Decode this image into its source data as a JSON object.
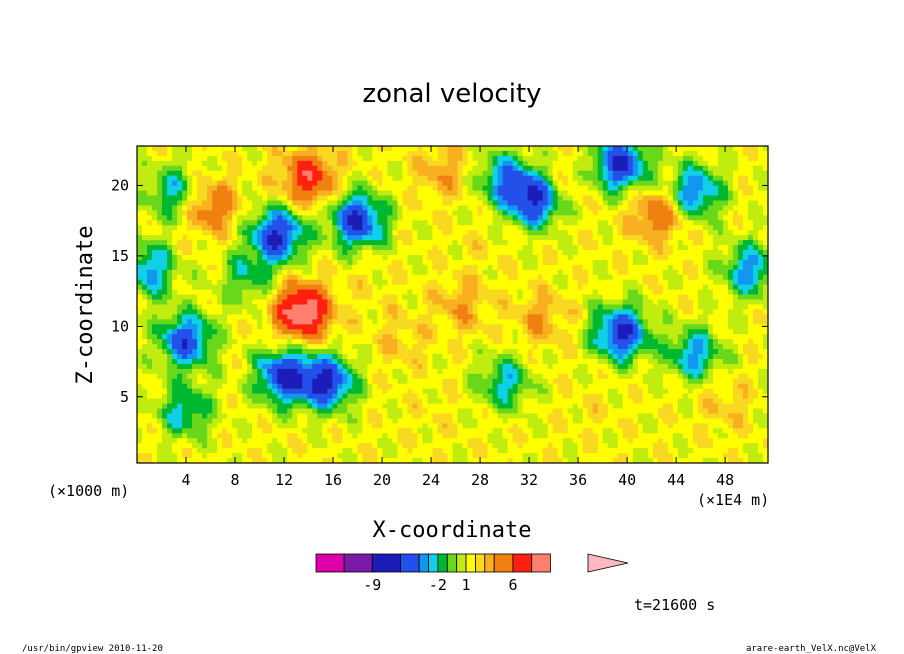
{
  "chart_data": {
    "type": "heatmap",
    "title": "zonal velocity",
    "xlabel": "X-coordinate",
    "ylabel": "Z-coordinate",
    "x_unit_left": "(×1000 m)",
    "x_unit_right": "(×1E4 m)",
    "xlim": [
      0,
      51.5
    ],
    "ylim": [
      0.3,
      22.8
    ],
    "x_ticks": [
      4,
      8,
      12,
      16,
      20,
      24,
      28,
      32,
      36,
      40,
      44,
      48
    ],
    "y_ticks": [
      5,
      10,
      15,
      20
    ],
    "colorbar": {
      "labels": [
        "-9",
        "-2",
        "1",
        "6"
      ],
      "label_values": [
        -9,
        -2,
        1,
        6
      ],
      "levels": [
        -15,
        -12,
        -9,
        -6,
        -4,
        -3,
        -2,
        -1,
        0,
        1,
        2,
        3,
        4,
        6,
        8,
        10,
        14
      ],
      "colors": [
        "#dd00aa",
        "#7a1aa8",
        "#1c1cb8",
        "#2250e8",
        "#1296f0",
        "#10d0e8",
        "#00b830",
        "#6ad81a",
        "#c0ec10",
        "#ffff00",
        "#f8d820",
        "#f8b020",
        "#f08010",
        "#ff2010",
        "#ff8070",
        "#ffb8c0"
      ]
    },
    "features": [
      {
        "x": 13.5,
        "z": 11.0,
        "value": 11
      },
      {
        "x": 14.0,
        "z": 20.5,
        "value": 8
      },
      {
        "x": 6.0,
        "z": 18.5,
        "value": 6
      },
      {
        "x": 42.5,
        "z": 18.0,
        "value": 6
      },
      {
        "x": 11.5,
        "z": 16.5,
        "value": -7
      },
      {
        "x": 12.0,
        "z": 6.5,
        "value": -7
      },
      {
        "x": 15.5,
        "z": 6.0,
        "value": -7
      },
      {
        "x": 18.0,
        "z": 17.5,
        "value": -7
      },
      {
        "x": 39.5,
        "z": 21.5,
        "value": -7
      },
      {
        "x": 32.5,
        "z": 19.0,
        "value": -7
      },
      {
        "x": 39.5,
        "z": 9.5,
        "value": -7
      },
      {
        "x": 4.0,
        "z": 9.0,
        "value": -6
      },
      {
        "x": 45.5,
        "z": 19.5,
        "value": -5
      },
      {
        "x": 50.0,
        "z": 14.0,
        "value": -4
      },
      {
        "x": 3.0,
        "z": 19.5,
        "value": -3
      },
      {
        "x": 30.0,
        "z": 20.5,
        "value": -4
      },
      {
        "x": 4.0,
        "z": 4.0,
        "value": -3
      },
      {
        "x": 45.5,
        "z": 8.0,
        "value": -4
      },
      {
        "x": 25.0,
        "z": 21.0,
        "value": 4
      },
      {
        "x": 26.5,
        "z": 11.5,
        "value": 4
      },
      {
        "x": 33.0,
        "z": 10.5,
        "value": 4
      },
      {
        "x": 21.5,
        "z": 9.0,
        "value": 3
      },
      {
        "x": 34.5,
        "z": 20.0,
        "value": 3
      },
      {
        "x": 19.0,
        "z": 13.0,
        "value": 2
      },
      {
        "x": 24.0,
        "z": 3.5,
        "value": 2
      },
      {
        "x": 30.0,
        "z": 6.0,
        "value": -3
      },
      {
        "x": 37.0,
        "z": 4.0,
        "value": 2
      },
      {
        "x": 48.0,
        "z": 4.5,
        "value": 3
      },
      {
        "x": 1.0,
        "z": 14.0,
        "value": -4
      },
      {
        "x": 9.0,
        "z": 13.5,
        "value": -2
      },
      {
        "x": 28.0,
        "z": 15.5,
        "value": 2
      }
    ],
    "background_value": 1.5
  },
  "time_label": "t=21600 s",
  "footer_left": "/usr/bin/gpview  2010-11-20",
  "footer_right": "arare-earth_VelX.nc@VelX"
}
